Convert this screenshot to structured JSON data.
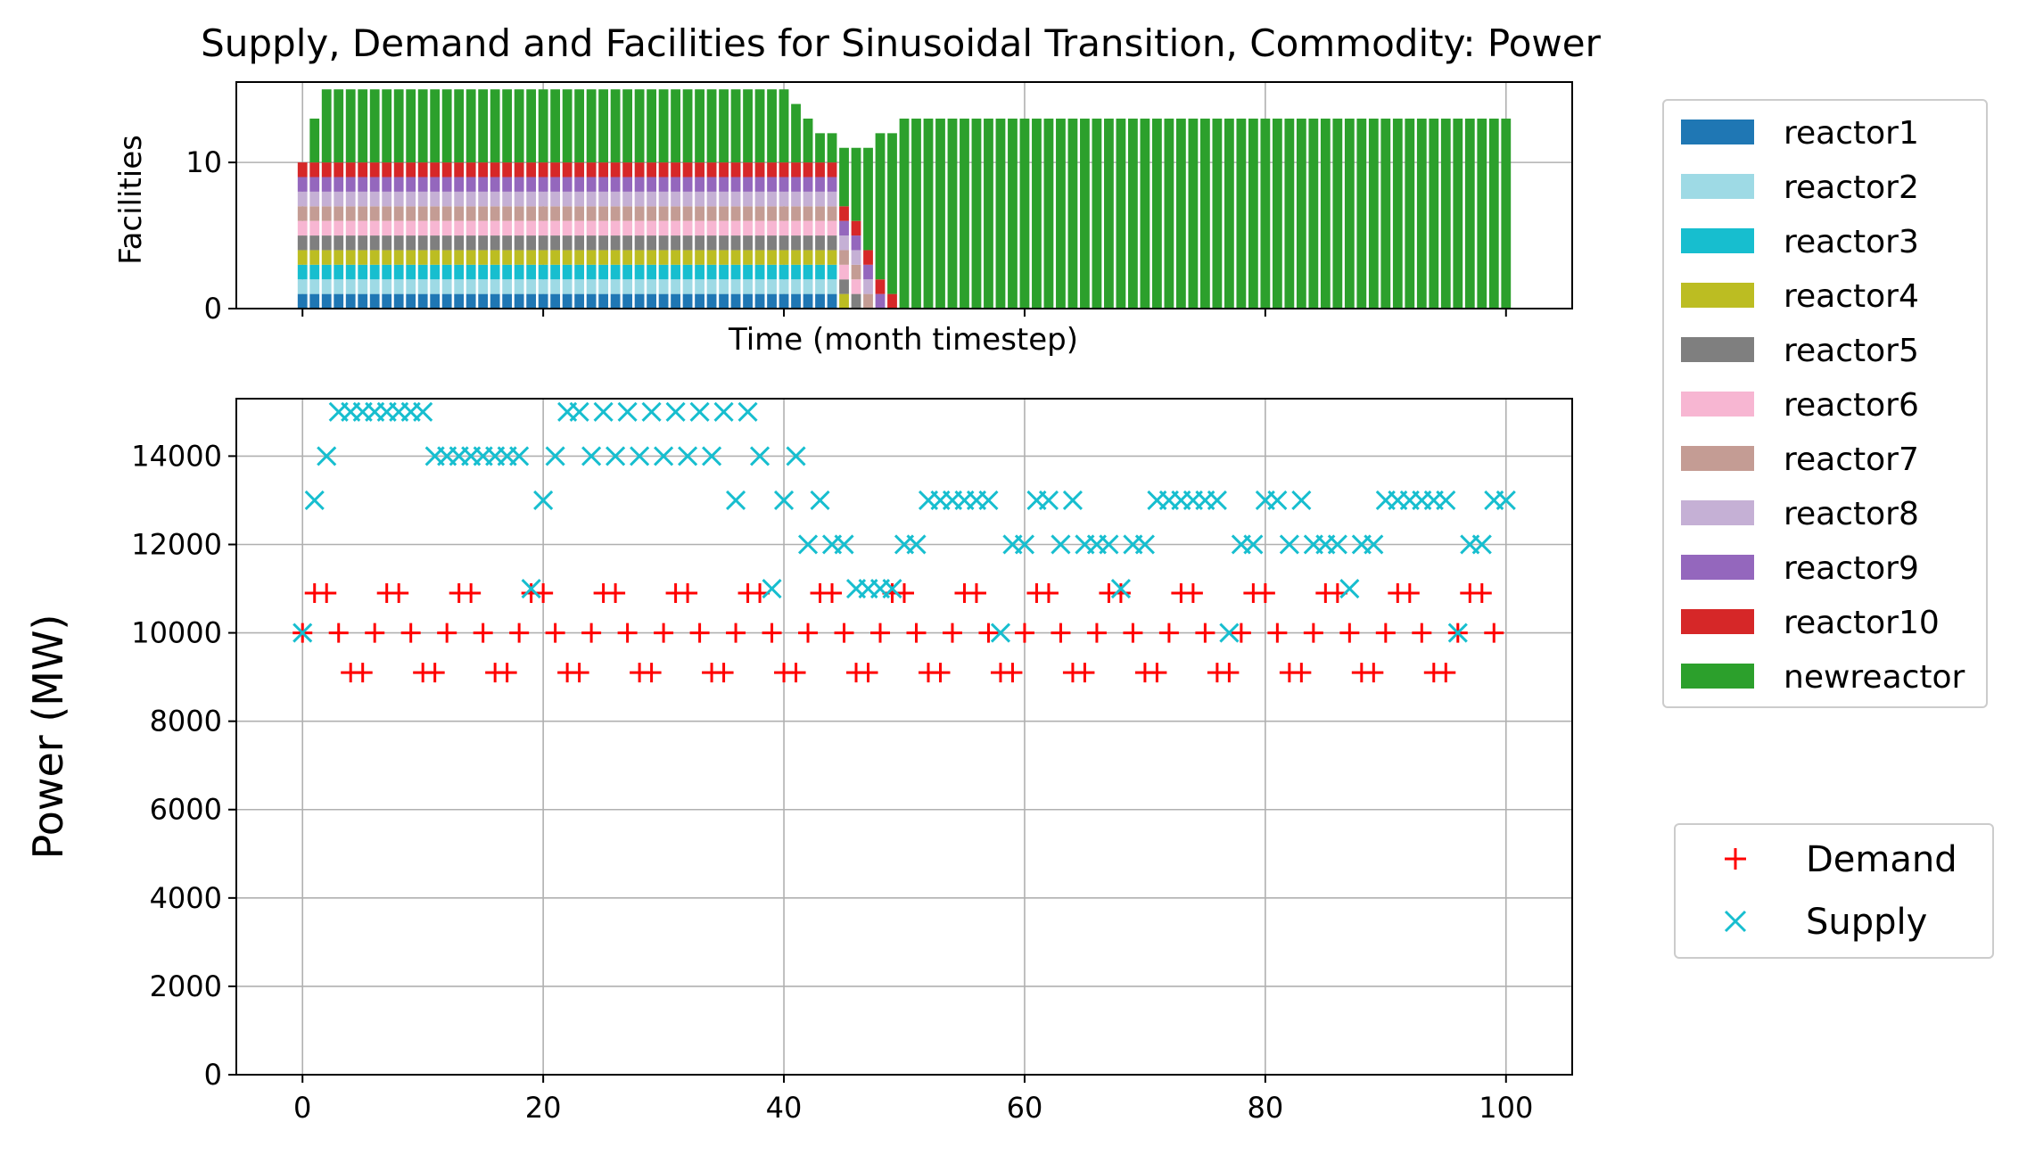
{
  "chart_data": [
    {
      "type": "bar",
      "stacked": true,
      "title": "Supply, Demand and Facilities for Sinusoidal Transition, Commodity: Power",
      "xlabel": "Time (month timestep)",
      "ylabel": "Facilities",
      "xlim": [
        -5.5,
        105.5
      ],
      "ylim": [
        0,
        15.5
      ],
      "xticks": [
        0,
        20,
        40,
        60,
        80,
        100
      ],
      "xtick_labels": [
        "",
        "",
        "",
        "",
        "",
        ""
      ],
      "yticks": [
        0,
        10
      ],
      "ytick_labels": [
        "0",
        "10"
      ],
      "grid": true,
      "legend_position": "right",
      "x_range": [
        0,
        100
      ],
      "reactor_series": [
        {
          "name": "reactor1",
          "color": "#1f77b4",
          "retire_month": 45
        },
        {
          "name": "reactor2",
          "color": "#9edae5",
          "retire_month": 45
        },
        {
          "name": "reactor3",
          "color": "#17becf",
          "retire_month": 45
        },
        {
          "name": "reactor4",
          "color": "#bcbd22",
          "retire_month": 46
        },
        {
          "name": "reactor5",
          "color": "#7f7f7f",
          "retire_month": 47
        },
        {
          "name": "reactor6",
          "color": "#f7b6d2",
          "retire_month": 47
        },
        {
          "name": "reactor7",
          "color": "#c49c94",
          "retire_month": 48
        },
        {
          "name": "reactor8",
          "color": "#c5b0d5",
          "retire_month": 48
        },
        {
          "name": "reactor9",
          "color": "#9467bd",
          "retire_month": 49
        },
        {
          "name": "reactor10",
          "color": "#d62728",
          "retire_month": 50
        }
      ],
      "newreactor": {
        "name": "newreactor",
        "color": "#2ca02c",
        "total_facilities": [
          10,
          13,
          15,
          15,
          15,
          15,
          15,
          15,
          15,
          15,
          15,
          15,
          15,
          15,
          15,
          15,
          15,
          15,
          15,
          15,
          15,
          15,
          15,
          15,
          15,
          15,
          15,
          15,
          15,
          15,
          15,
          15,
          15,
          15,
          15,
          15,
          15,
          15,
          15,
          15,
          15,
          14,
          13,
          12,
          12,
          11,
          11,
          11,
          12,
          12,
          13,
          13,
          13,
          13,
          13,
          13,
          13,
          13,
          13,
          13,
          13,
          13,
          13,
          13,
          13,
          13,
          13,
          13,
          13,
          13,
          13,
          13,
          13,
          13,
          13,
          13,
          13,
          13,
          13,
          13,
          13,
          13,
          13,
          13,
          13,
          13,
          13,
          13,
          13,
          13,
          13,
          13,
          13,
          13,
          13,
          13,
          13,
          13,
          13,
          13,
          13
        ]
      }
    },
    {
      "type": "scatter",
      "xlabel": "",
      "ylabel": "Power (MW)",
      "xlim": [
        -5.5,
        105.5
      ],
      "ylim": [
        0,
        15300
      ],
      "xticks": [
        0,
        20,
        40,
        60,
        80,
        100
      ],
      "xtick_labels": [
        "0",
        "20",
        "40",
        "60",
        "80",
        "100"
      ],
      "yticks": [
        0,
        2000,
        4000,
        6000,
        8000,
        10000,
        12000,
        14000
      ],
      "ytick_labels": [
        "0",
        "2000",
        "4000",
        "6000",
        "8000",
        "10000",
        "12000",
        "14000"
      ],
      "grid": true,
      "legend_position": "right",
      "series": [
        {
          "name": "Demand",
          "color": "#ff0000",
          "marker": "+",
          "x_start": 0,
          "values": [
            10000,
            10900,
            10900,
            10000,
            9100,
            9100,
            10000,
            10900,
            10900,
            10000,
            9100,
            9100,
            10000,
            10900,
            10900,
            10000,
            9100,
            9100,
            10000,
            10900,
            10900,
            10000,
            9100,
            9100,
            10000,
            10900,
            10900,
            10000,
            9100,
            9100,
            10000,
            10900,
            10900,
            10000,
            9100,
            9100,
            10000,
            10900,
            10900,
            10000,
            9100,
            9100,
            10000,
            10900,
            10900,
            10000,
            9100,
            9100,
            10000,
            10900,
            10900,
            10000,
            9100,
            9100,
            10000,
            10900,
            10900,
            10000,
            9100,
            9100,
            10000,
            10900,
            10900,
            10000,
            9100,
            9100,
            10000,
            10900,
            10900,
            10000,
            9100,
            9100,
            10000,
            10900,
            10900,
            10000,
            9100,
            9100,
            10000,
            10900,
            10900,
            10000,
            9100,
            9100,
            10000,
            10900,
            10900,
            10000,
            9100,
            9100,
            10000,
            10900,
            10900,
            10000,
            9100,
            9100,
            10000,
            10900,
            10900,
            10000
          ]
        },
        {
          "name": "Supply",
          "color": "#17becf",
          "marker": "x",
          "x_start": 0,
          "values": [
            10000,
            13000,
            14000,
            15000,
            15000,
            15000,
            15000,
            15000,
            15000,
            15000,
            15000,
            14000,
            14000,
            14000,
            14000,
            14000,
            14000,
            14000,
            14000,
            11000,
            13000,
            14000,
            15000,
            15000,
            14000,
            15000,
            14000,
            15000,
            14000,
            15000,
            14000,
            15000,
            14000,
            15000,
            14000,
            15000,
            13000,
            15000,
            14000,
            11000,
            13000,
            14000,
            12000,
            13000,
            12000,
            12000,
            11000,
            11000,
            11000,
            11000,
            12000,
            12000,
            13000,
            13000,
            13000,
            13000,
            13000,
            13000,
            10000,
            12000,
            12000,
            13000,
            13000,
            12000,
            13000,
            12000,
            12000,
            12000,
            11000,
            12000,
            12000,
            13000,
            13000,
            13000,
            13000,
            13000,
            13000,
            10000,
            12000,
            12000,
            13000,
            13000,
            12000,
            13000,
            12000,
            12000,
            12000,
            11000,
            12000,
            12000,
            13000,
            13000,
            13000,
            13000,
            13000,
            13000,
            10000,
            12000,
            12000,
            13000,
            13000
          ]
        }
      ]
    }
  ]
}
